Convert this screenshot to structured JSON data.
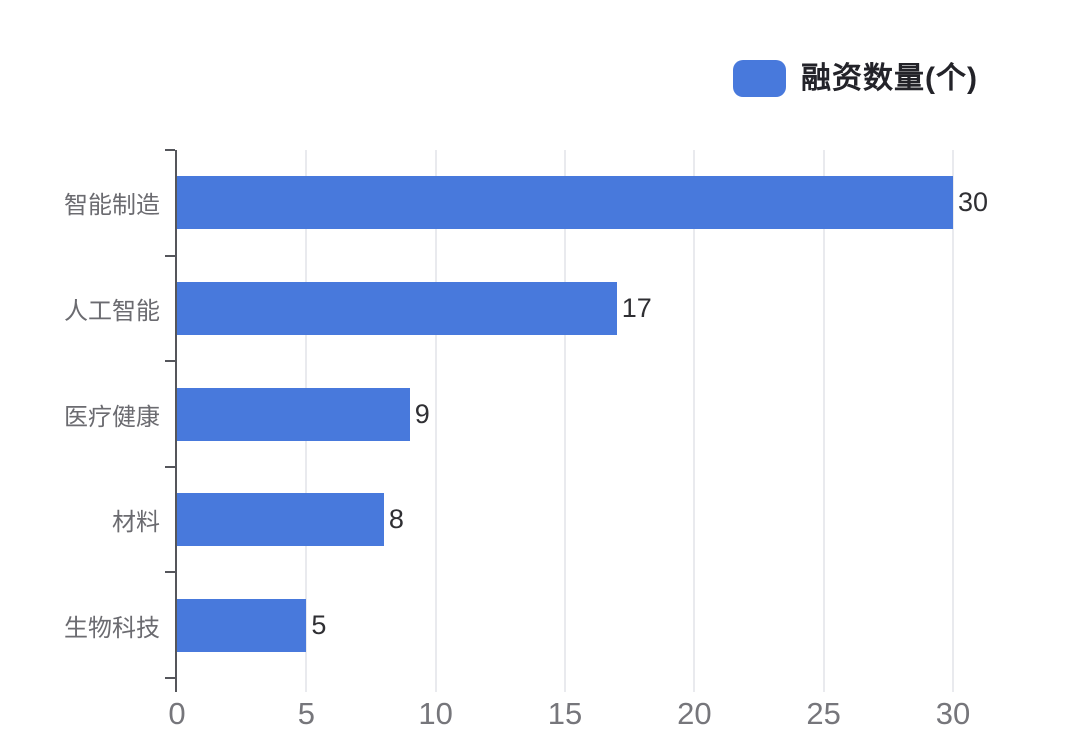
{
  "legend": {
    "label": "融资数量(个)"
  },
  "colors": {
    "bar": "#4879DC",
    "axis": "#55565B",
    "grid": "#E9EAEE",
    "category_label": "#6B6B70",
    "tick_label": "#76767B",
    "value_label": "#2F2F33",
    "legend_text": "#232329",
    "background": "#FFFFFF"
  },
  "chart_data": {
    "type": "bar",
    "orientation": "horizontal",
    "title": "",
    "xlabel": "",
    "ylabel": "",
    "categories": [
      "智能制造",
      "人工智能",
      "医疗健康",
      "材料",
      "生物科技"
    ],
    "values": [
      30,
      17,
      9,
      8,
      5
    ],
    "series_name": "融资数量(个)",
    "xlim": [
      0,
      30
    ],
    "xticks": [
      0,
      5,
      10,
      15,
      20,
      25,
      30
    ],
    "grid": "vertical-lines-on",
    "legend_position": "top-right",
    "value_labels": "end-of-bar"
  }
}
